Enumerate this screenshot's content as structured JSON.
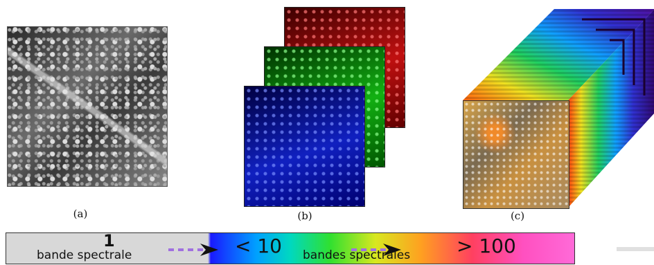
{
  "panels": {
    "a": {
      "caption": "(a)"
    },
    "b": {
      "caption": "(b)"
    },
    "c": {
      "caption": "(c)"
    }
  },
  "spectrum_bar": {
    "single_band_number": "1",
    "single_band_label": "bande spectrale",
    "few_bands_label": "< 10",
    "bands_label": "bandes spectrales",
    "many_bands_label": "> 100"
  },
  "colors": {
    "red_layer": "#c01010",
    "green_layer": "#12b012",
    "blue_layer": "#1020c0",
    "arrow_dash": "#a070e0",
    "arrow_head": "#111111"
  }
}
